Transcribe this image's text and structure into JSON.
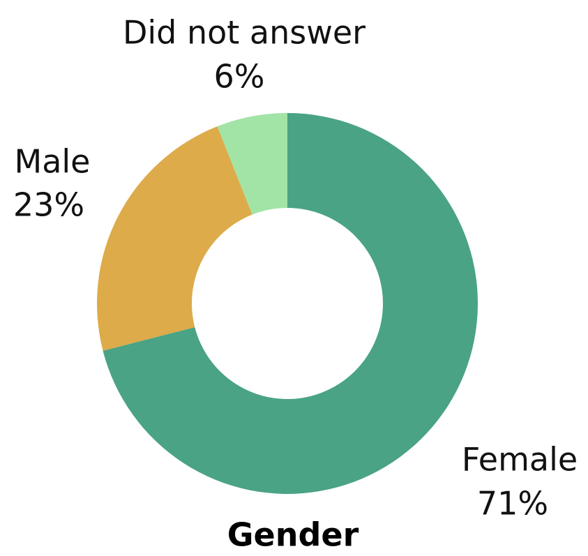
{
  "chart_data": {
    "type": "donut",
    "title": "Gender",
    "categories": [
      "Female",
      "Male",
      "Did not answer"
    ],
    "values": [
      71,
      23,
      6
    ],
    "value_labels": [
      "71%",
      "23%",
      "6%"
    ],
    "colors": [
      "#4aa384",
      "#ddab4a",
      "#a2e4a6"
    ]
  }
}
